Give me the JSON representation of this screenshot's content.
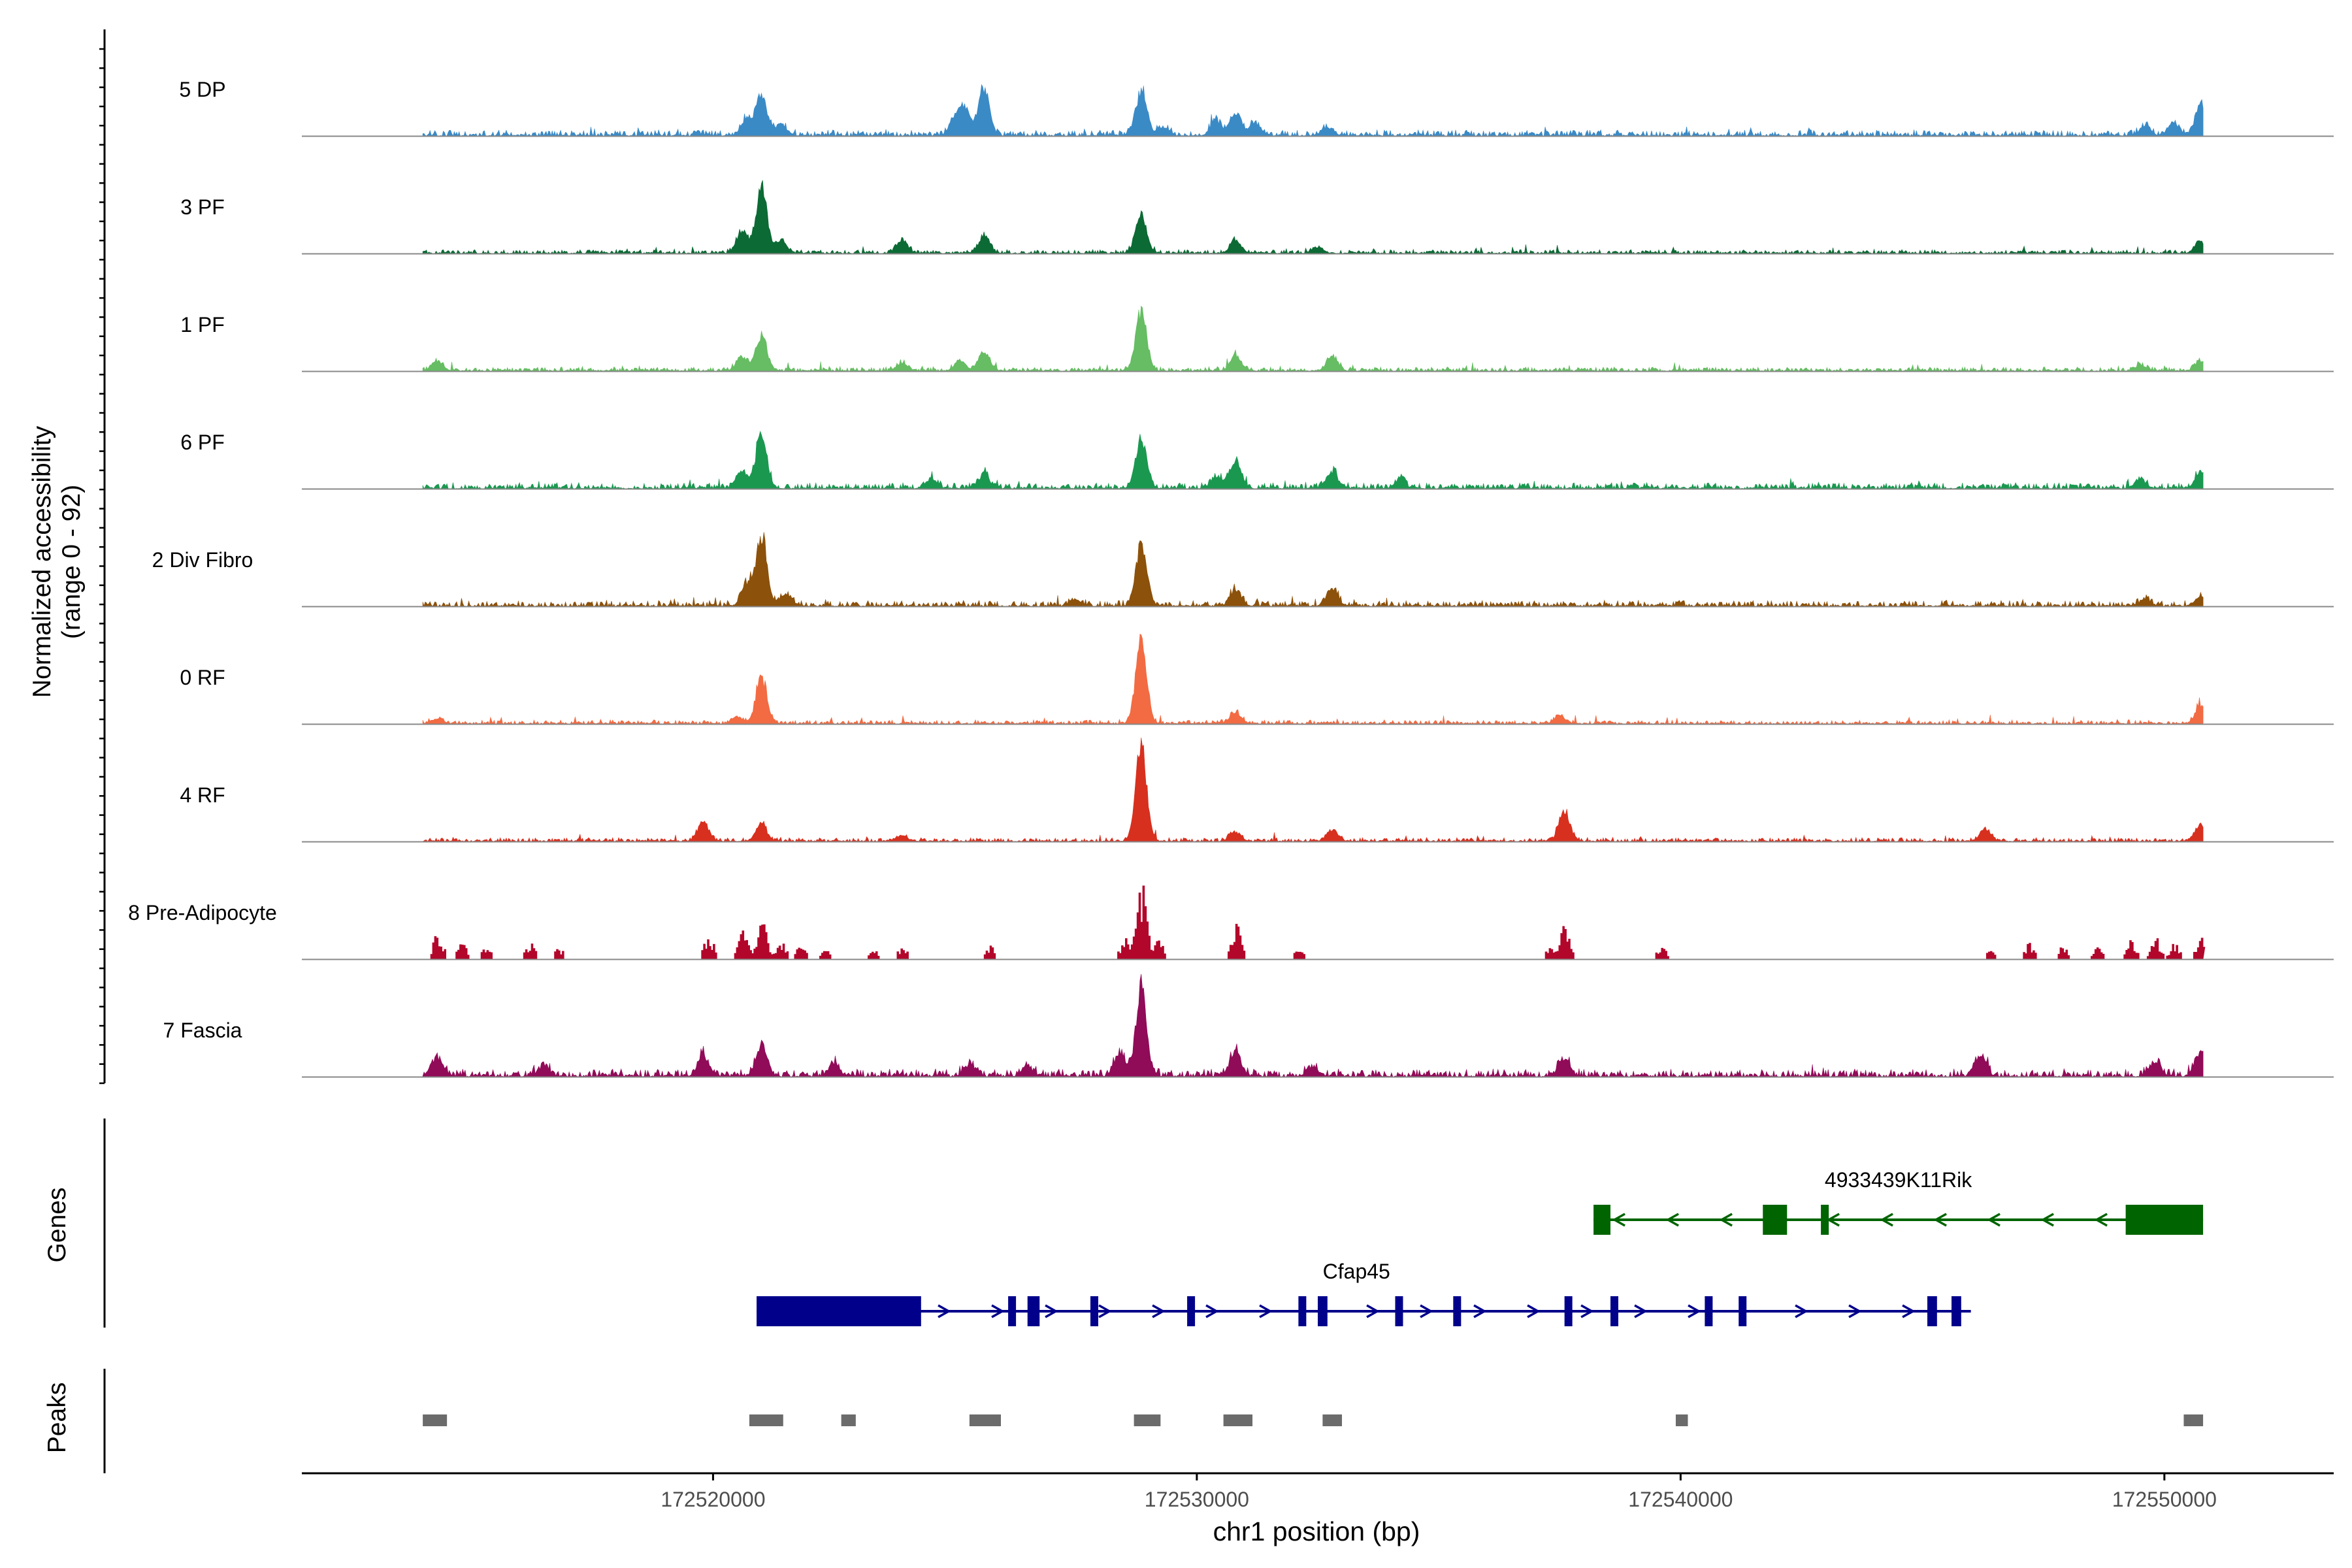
{
  "chart_data": {
    "type": "area",
    "title": "",
    "y_axis_label_line1": "Normalized accessibility",
    "y_axis_label_line2": "(range 0 - 92)",
    "y_range": [
      0,
      92
    ],
    "x_axis_label": "chr1 position (bp)",
    "x_range": [
      172511500,
      172553500
    ],
    "x_ticks": [
      172520000,
      172530000,
      172540000,
      172550000
    ],
    "x_tick_labels": [
      "172520000",
      "172530000",
      "172540000",
      "172550000"
    ],
    "data_start": 172514000,
    "data_end": 172550800,
    "tracks": [
      {
        "name": "5 DP",
        "color": "#3a8ac6",
        "style": "smooth",
        "baseline": 3,
        "peaks": [
          [
            172521000,
            34
          ],
          [
            172520700,
            14
          ],
          [
            172521400,
            10
          ],
          [
            172525600,
            40
          ],
          [
            172525200,
            22
          ],
          [
            172525000,
            14
          ],
          [
            172528850,
            38
          ],
          [
            172530800,
            20
          ],
          [
            172530400,
            12
          ],
          [
            172531200,
            10
          ],
          [
            172529300,
            7
          ],
          [
            172532700,
            7
          ],
          [
            172550750,
            26
          ],
          [
            172550200,
            10
          ],
          [
            172549600,
            8
          ]
        ]
      },
      {
        "name": "3 PF",
        "color": "#0c6a35",
        "style": "smooth",
        "baseline": 2,
        "peaks": [
          [
            172521000,
            56
          ],
          [
            172520600,
            18
          ],
          [
            172521400,
            10
          ],
          [
            172523900,
            10
          ],
          [
            172525600,
            14
          ],
          [
            172528850,
            32
          ],
          [
            172530800,
            10
          ],
          [
            172532500,
            5
          ],
          [
            172550750,
            10
          ]
        ]
      },
      {
        "name": "1 PF",
        "color": "#66bd63",
        "style": "smooth",
        "baseline": 2,
        "peaks": [
          [
            172521000,
            30
          ],
          [
            172520600,
            12
          ],
          [
            172525600,
            16
          ],
          [
            172525100,
            8
          ],
          [
            172523900,
            6
          ],
          [
            172528850,
            50
          ],
          [
            172530800,
            13
          ],
          [
            172532800,
            12
          ],
          [
            172514300,
            8
          ],
          [
            172550750,
            8
          ],
          [
            172549500,
            5
          ]
        ]
      },
      {
        "name": "6 PF",
        "color": "#1a9850",
        "style": "smooth",
        "baseline": 3,
        "peaks": [
          [
            172521000,
            46
          ],
          [
            172520600,
            14
          ],
          [
            172525600,
            12
          ],
          [
            172524500,
            8
          ],
          [
            172528850,
            42
          ],
          [
            172530800,
            24
          ],
          [
            172530400,
            10
          ],
          [
            172532800,
            14
          ],
          [
            172534200,
            7
          ],
          [
            172550750,
            14
          ],
          [
            172549500,
            8
          ]
        ]
      },
      {
        "name": "2 Div Fibro",
        "color": "#8c510a",
        "style": "smooth",
        "baseline": 3,
        "peaks": [
          [
            172521000,
            58
          ],
          [
            172520700,
            18
          ],
          [
            172521500,
            10
          ],
          [
            172528850,
            52
          ],
          [
            172530800,
            14
          ],
          [
            172532800,
            14
          ],
          [
            172527500,
            5
          ],
          [
            172550750,
            8
          ],
          [
            172549600,
            6
          ]
        ]
      },
      {
        "name": "0 RF",
        "color": "#f26b43",
        "style": "smooth",
        "baseline": 2,
        "peaks": [
          [
            172521000,
            40
          ],
          [
            172528850,
            70
          ],
          [
            172530800,
            10
          ],
          [
            172537500,
            6
          ],
          [
            172520500,
            6
          ],
          [
            172550750,
            14
          ],
          [
            172514300,
            4
          ]
        ]
      },
      {
        "name": "4 RF",
        "color": "#d7301f",
        "style": "smooth",
        "baseline": 2,
        "peaks": [
          [
            172519800,
            16
          ],
          [
            172521000,
            14
          ],
          [
            172528850,
            80
          ],
          [
            172530800,
            8
          ],
          [
            172532800,
            10
          ],
          [
            172537600,
            26
          ],
          [
            172546300,
            10
          ],
          [
            172550750,
            14
          ],
          [
            172523900,
            5
          ]
        ]
      },
      {
        "name": "8 Pre-Adipocyte",
        "color": "#b2062b",
        "style": "blocky",
        "baseline": 0,
        "peaks": [
          [
            172514300,
            20
          ],
          [
            172514800,
            12
          ],
          [
            172515300,
            10
          ],
          [
            172516200,
            12
          ],
          [
            172516800,
            8
          ],
          [
            172519900,
            18
          ],
          [
            172520600,
            22
          ],
          [
            172521000,
            28
          ],
          [
            172521400,
            12
          ],
          [
            172521800,
            10
          ],
          [
            172522300,
            8
          ],
          [
            172523300,
            8
          ],
          [
            172523900,
            10
          ],
          [
            172525700,
            10
          ],
          [
            172528500,
            16
          ],
          [
            172528850,
            60
          ],
          [
            172529200,
            14
          ],
          [
            172530800,
            28
          ],
          [
            172532100,
            8
          ],
          [
            172537300,
            10
          ],
          [
            172537600,
            30
          ],
          [
            172539600,
            10
          ],
          [
            172546400,
            6
          ],
          [
            172547200,
            12
          ],
          [
            172547900,
            10
          ],
          [
            172548600,
            10
          ],
          [
            172549300,
            14
          ],
          [
            172549800,
            16
          ],
          [
            172550200,
            12
          ],
          [
            172550750,
            16
          ]
        ]
      },
      {
        "name": "7 Fascia",
        "color": "#900b58",
        "style": "smooth",
        "baseline": 4,
        "peaks": [
          [
            172514300,
            14
          ],
          [
            172516500,
            8
          ],
          [
            172519800,
            18
          ],
          [
            172521000,
            28
          ],
          [
            172522500,
            10
          ],
          [
            172525300,
            10
          ],
          [
            172526500,
            8
          ],
          [
            172528850,
            74
          ],
          [
            172528400,
            18
          ],
          [
            172530800,
            20
          ],
          [
            172532400,
            8
          ],
          [
            172537600,
            16
          ],
          [
            172546200,
            16
          ],
          [
            172550750,
            22
          ],
          [
            172549800,
            12
          ]
        ]
      }
    ],
    "genes": [
      {
        "name": "4933439K11Rik",
        "color": "#006400",
        "strand": "-",
        "start": 172538200,
        "end": 172550800,
        "exons": [
          [
            172538200,
            172538550
          ],
          [
            172541700,
            172542200
          ],
          [
            172542900,
            172543000
          ],
          [
            172549200,
            172550800
          ]
        ],
        "label_position": 172544500
      },
      {
        "name": "Cfap45",
        "color": "#00008b",
        "strand": "+",
        "start": 172520900,
        "end": 172546000,
        "exons": [
          [
            172520900,
            172524300
          ],
          [
            172526100,
            172526200
          ],
          [
            172526500,
            172526750
          ],
          [
            172527800,
            172527900
          ],
          [
            172529800,
            172529950
          ],
          [
            172532100,
            172532200
          ],
          [
            172532500,
            172532700
          ],
          [
            172534100,
            172534250
          ],
          [
            172535300,
            172535400
          ],
          [
            172537600,
            172537700
          ],
          [
            172538550,
            172538650
          ],
          [
            172540500,
            172540600
          ],
          [
            172541200,
            172541350
          ],
          [
            172545100,
            172545300
          ],
          [
            172545600,
            172545800
          ]
        ],
        "label_position": 172533300
      }
    ],
    "peaks_track": [
      [
        172514000,
        172514500
      ],
      [
        172520750,
        172521450
      ],
      [
        172522650,
        172522950
      ],
      [
        172525300,
        172525950
      ],
      [
        172528700,
        172529250
      ],
      [
        172530550,
        172531150
      ],
      [
        172532600,
        172533000
      ],
      [
        172539900,
        172540150
      ],
      [
        172550400,
        172550800
      ]
    ],
    "genes_label": "Genes",
    "peaks_label": "Peaks",
    "axis_color": "#000000",
    "baseline_color": "#888888",
    "peak_color": "#6b6b6b"
  }
}
